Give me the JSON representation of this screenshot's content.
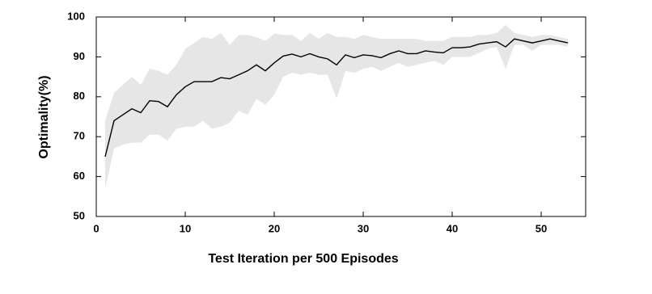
{
  "chart_data": {
    "type": "line",
    "xlabel": "Test Iteration per 500 Episodes",
    "ylabel": "Optimality(%)",
    "x": [
      1,
      2,
      3,
      4,
      5,
      6,
      7,
      8,
      9,
      10,
      11,
      12,
      13,
      14,
      15,
      16,
      17,
      18,
      19,
      20,
      21,
      22,
      23,
      24,
      25,
      26,
      27,
      28,
      29,
      30,
      31,
      32,
      33,
      34,
      35,
      36,
      37,
      38,
      39,
      40,
      41,
      42,
      43,
      44,
      45,
      46,
      47,
      48,
      49,
      50,
      51,
      52,
      53
    ],
    "values": [
      65,
      74,
      75.5,
      77,
      76,
      79,
      78.8,
      77.5,
      80.5,
      82.5,
      83.8,
      83.8,
      83.8,
      84.8,
      84.5,
      85.5,
      86.5,
      88,
      86.5,
      88.5,
      90.2,
      90.7,
      90,
      90.8,
      90,
      89.5,
      88,
      90.5,
      89.8,
      90.5,
      90.3,
      89.8,
      90.8,
      91.5,
      90.8,
      90.8,
      91.5,
      91.2,
      91,
      92.3,
      92.3,
      92.5,
      93.2,
      93.5,
      93.8,
      92.5,
      94.5,
      94,
      93.5,
      94,
      94.5,
      94,
      93.5
    ],
    "upper": [
      74,
      81,
      83,
      85,
      83,
      87,
      86.5,
      85.5,
      88,
      92,
      93.5,
      95,
      94.5,
      96,
      93,
      95.5,
      95.5,
      95,
      94,
      95.8,
      95.5,
      95.5,
      94,
      96,
      94.5,
      96,
      95,
      95,
      94.5,
      95.5,
      95,
      94.5,
      94.5,
      94.5,
      94.5,
      94.5,
      94,
      94,
      94,
      95,
      95,
      95,
      95.5,
      95.5,
      96,
      98,
      96,
      95.5,
      95,
      95.5,
      95.5,
      95,
      94.5
    ],
    "lower": [
      57,
      67,
      68,
      68.5,
      68.5,
      70.5,
      70.5,
      69,
      72,
      72.5,
      72.5,
      74,
      72,
      72.5,
      73.5,
      76.5,
      75.5,
      79.5,
      78,
      80.5,
      85,
      86,
      85.5,
      86,
      85.5,
      85.5,
      79.5,
      86.5,
      86,
      87,
      87.5,
      86.5,
      87.5,
      88.5,
      87.5,
      88,
      88.5,
      89,
      88,
      90,
      90,
      90,
      91,
      92,
      92.5,
      87,
      93,
      93,
      91.5,
      93,
      93,
      93,
      92.5
    ],
    "color": "#000000",
    "band_color": "#e6e6e6",
    "xlim": [
      0,
      55
    ],
    "xticks": [
      0,
      10,
      20,
      30,
      40,
      50
    ],
    "ylim": [
      50,
      100
    ],
    "yticks": [
      50,
      60,
      70,
      80,
      90,
      100
    ]
  }
}
